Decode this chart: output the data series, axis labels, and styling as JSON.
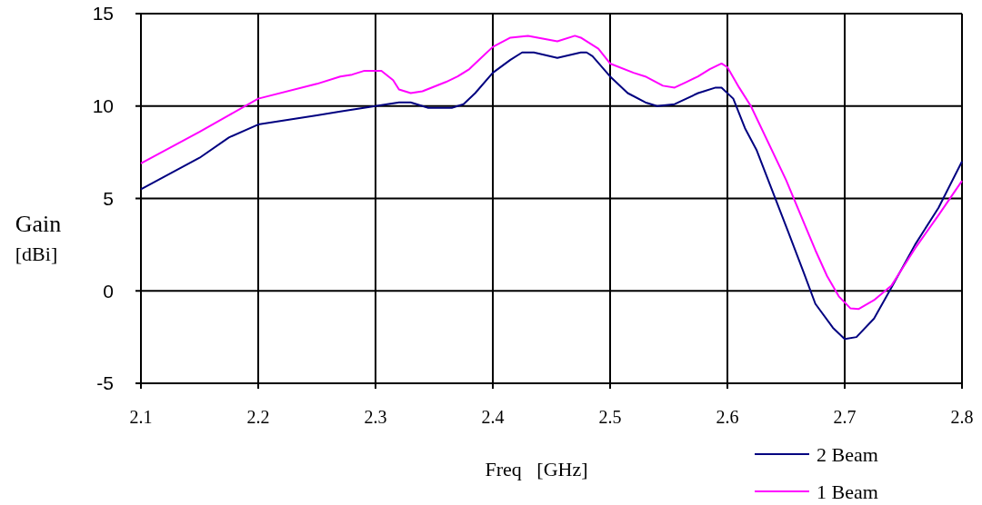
{
  "chart_data": {
    "type": "line",
    "xlabel": "Freq   [GHz]",
    "ylabel": "Gain\n[dBi]",
    "xlim": [
      2.1,
      2.8
    ],
    "xticks": [
      2.1,
      2.2,
      2.3,
      2.4,
      2.5,
      2.6,
      2.7,
      2.8
    ],
    "ylim": [
      -5,
      15
    ],
    "yticks": [
      -5,
      0,
      5,
      10,
      15
    ],
    "grid": true,
    "legend": "bottom right",
    "marker": "none",
    "line_style": "solid",
    "series": [
      {
        "name": "2 Beam",
        "color": "#000080",
        "x": [
          2.1,
          2.15,
          2.175,
          2.2,
          2.25,
          2.27,
          2.28,
          2.3,
          2.32,
          2.33,
          2.345,
          2.365,
          2.375,
          2.385,
          2.4,
          2.415,
          2.425,
          2.435,
          2.455,
          2.475,
          2.48,
          2.485,
          2.5,
          2.515,
          2.53,
          2.54,
          2.555,
          2.565,
          2.575,
          2.58,
          2.59,
          2.595,
          2.605,
          2.615,
          2.625,
          2.65,
          2.665,
          2.675,
          2.69,
          2.7,
          2.71,
          2.725,
          2.74,
          2.76,
          2.78,
          2.8
        ],
        "values": [
          5.5,
          7.2,
          8.3,
          9.0,
          9.5,
          9.7,
          9.8,
          10.0,
          10.2,
          10.2,
          9.9,
          9.9,
          10.1,
          10.7,
          11.8,
          12.5,
          12.9,
          12.9,
          12.6,
          12.9,
          12.9,
          12.7,
          11.6,
          10.7,
          10.2,
          10.0,
          10.1,
          10.4,
          10.7,
          10.8,
          11.0,
          11.0,
          10.4,
          8.8,
          7.6,
          3.5,
          1.0,
          -0.7,
          -2.0,
          -2.6,
          -2.5,
          -1.5,
          0.2,
          2.5,
          4.5,
          7.0
        ]
      },
      {
        "name": "1 Beam",
        "color": "#ff00ff",
        "x": [
          2.1,
          2.15,
          2.175,
          2.2,
          2.25,
          2.27,
          2.28,
          2.29,
          2.305,
          2.315,
          2.32,
          2.33,
          2.34,
          2.36,
          2.37,
          2.38,
          2.39,
          2.4,
          2.415,
          2.43,
          2.455,
          2.47,
          2.475,
          2.49,
          2.5,
          2.52,
          2.53,
          2.545,
          2.555,
          2.565,
          2.575,
          2.585,
          2.595,
          2.6,
          2.61,
          2.62,
          2.65,
          2.675,
          2.685,
          2.695,
          2.705,
          2.712,
          2.725,
          2.74,
          2.76,
          2.78,
          2.8
        ],
        "values": [
          6.9,
          8.6,
          9.5,
          10.4,
          11.2,
          11.6,
          11.7,
          11.9,
          11.9,
          11.4,
          10.9,
          10.7,
          10.8,
          11.3,
          11.6,
          12.0,
          12.6,
          13.2,
          13.7,
          13.8,
          13.5,
          13.8,
          13.7,
          13.1,
          12.3,
          11.8,
          11.6,
          11.1,
          11.0,
          11.3,
          11.6,
          12.0,
          12.3,
          12.1,
          11.0,
          10.0,
          6.0,
          2.2,
          0.8,
          -0.3,
          -0.95,
          -0.98,
          -0.5,
          0.3,
          2.3,
          4.1,
          5.95
        ]
      }
    ]
  }
}
